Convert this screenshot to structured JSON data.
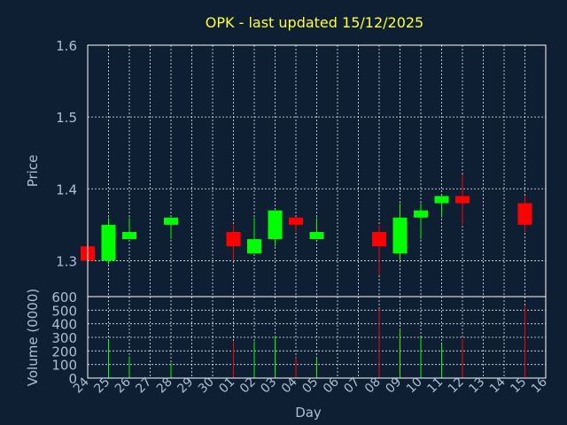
{
  "title": "OPK - last updated 15/12/2025",
  "colors": {
    "background": "#0f1f33",
    "up": "#00ff00",
    "down": "#ff0000",
    "title": "#ffff33",
    "text": "#a9bfd6",
    "grid": "#ffffff"
  },
  "chart_data": [
    {
      "type": "candlestick",
      "title": "OPK - last updated 15/12/2025",
      "ylabel": "Price",
      "ylim": [
        1.25,
        1.6
      ],
      "yticks": [
        "1.3",
        "1.4",
        "1.5",
        "1.6"
      ],
      "grid": true,
      "candles": [
        {
          "day": "24",
          "open": 1.32,
          "high": 1.32,
          "low": 1.3,
          "close": 1.3
        },
        {
          "day": "25",
          "open": 1.3,
          "high": 1.36,
          "low": 1.295,
          "close": 1.35
        },
        {
          "day": "26",
          "open": 1.33,
          "high": 1.36,
          "low": 1.33,
          "close": 1.34
        },
        {
          "day": "28",
          "open": 1.35,
          "high": 1.36,
          "low": 1.33,
          "close": 1.36
        },
        {
          "day": "01",
          "open": 1.34,
          "high": 1.35,
          "low": 1.3,
          "close": 1.32
        },
        {
          "day": "02",
          "open": 1.31,
          "high": 1.36,
          "low": 1.31,
          "close": 1.33
        },
        {
          "day": "03",
          "open": 1.33,
          "high": 1.37,
          "low": 1.32,
          "close": 1.37
        },
        {
          "day": "04",
          "open": 1.36,
          "high": 1.36,
          "low": 1.34,
          "close": 1.35
        },
        {
          "day": "05",
          "open": 1.33,
          "high": 1.36,
          "low": 1.33,
          "close": 1.34
        },
        {
          "day": "08",
          "open": 1.34,
          "high": 1.35,
          "low": 1.28,
          "close": 1.32
        },
        {
          "day": "09",
          "open": 1.31,
          "high": 1.38,
          "low": 1.3,
          "close": 1.36
        },
        {
          "day": "10",
          "open": 1.36,
          "high": 1.38,
          "low": 1.33,
          "close": 1.37
        },
        {
          "day": "11",
          "open": 1.38,
          "high": 1.39,
          "low": 1.36,
          "close": 1.39
        },
        {
          "day": "12",
          "open": 1.39,
          "high": 1.42,
          "low": 1.35,
          "close": 1.38
        },
        {
          "day": "15",
          "open": 1.38,
          "high": 1.39,
          "low": 1.34,
          "close": 1.35
        }
      ]
    },
    {
      "type": "bar",
      "ylabel": "Volume (0000)",
      "ylim": [
        0,
        600
      ],
      "yticks": [
        "0",
        "100",
        "200",
        "300",
        "400",
        "500",
        "600"
      ],
      "xlabel": "Day",
      "categories": [
        "24",
        "25",
        "26",
        "27",
        "28",
        "29",
        "30",
        "01",
        "02",
        "03",
        "04",
        "05",
        "06",
        "07",
        "08",
        "09",
        "10",
        "11",
        "12",
        "13",
        "14",
        "15",
        "16"
      ],
      "grid": true,
      "volumes": [
        {
          "day": "24",
          "value": 0,
          "dir": "down"
        },
        {
          "day": "25",
          "value": 280,
          "dir": "up"
        },
        {
          "day": "26",
          "value": 160,
          "dir": "up"
        },
        {
          "day": "28",
          "value": 110,
          "dir": "up"
        },
        {
          "day": "01",
          "value": 270,
          "dir": "down"
        },
        {
          "day": "02",
          "value": 270,
          "dir": "up"
        },
        {
          "day": "03",
          "value": 310,
          "dir": "up"
        },
        {
          "day": "04",
          "value": 150,
          "dir": "down"
        },
        {
          "day": "05",
          "value": 150,
          "dir": "up"
        },
        {
          "day": "08",
          "value": 510,
          "dir": "down"
        },
        {
          "day": "09",
          "value": 360,
          "dir": "up"
        },
        {
          "day": "10",
          "value": 300,
          "dir": "up"
        },
        {
          "day": "11",
          "value": 250,
          "dir": "up"
        },
        {
          "day": "12",
          "value": 290,
          "dir": "down"
        },
        {
          "day": "15",
          "value": 530,
          "dir": "down"
        }
      ]
    }
  ]
}
